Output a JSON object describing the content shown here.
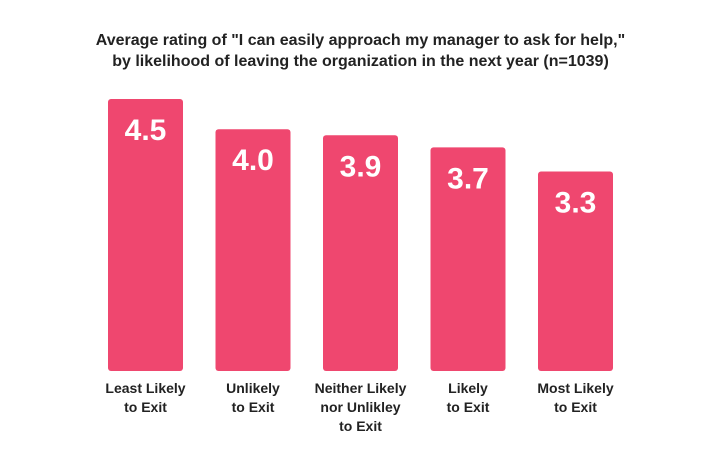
{
  "chart_data": {
    "type": "bar",
    "title_lines": [
      "Average rating of \"I can easily approach my manager to ask for help,\"",
      "by likelihood of leaving the organization in the next year (n=1039)"
    ],
    "categories": [
      [
        "Least Likely",
        "to Exit"
      ],
      [
        "Unlikely",
        "to Exit"
      ],
      [
        "Neither Likely",
        "nor Unlikley",
        "to Exit"
      ],
      [
        "Likely",
        "to Exit"
      ],
      [
        "Most Likely",
        "to Exit"
      ]
    ],
    "values": [
      4.5,
      4.0,
      3.9,
      3.7,
      3.3
    ],
    "value_labels": [
      "4.5",
      "4.0",
      "3.9",
      "3.7",
      "3.3"
    ],
    "xlabel": "",
    "ylabel": "",
    "ylim": [
      0,
      4.5
    ],
    "grid": false,
    "legend": "none",
    "bar_color": "#ef476f",
    "value_label_color": "#ffffff",
    "text_color": "#222222"
  }
}
